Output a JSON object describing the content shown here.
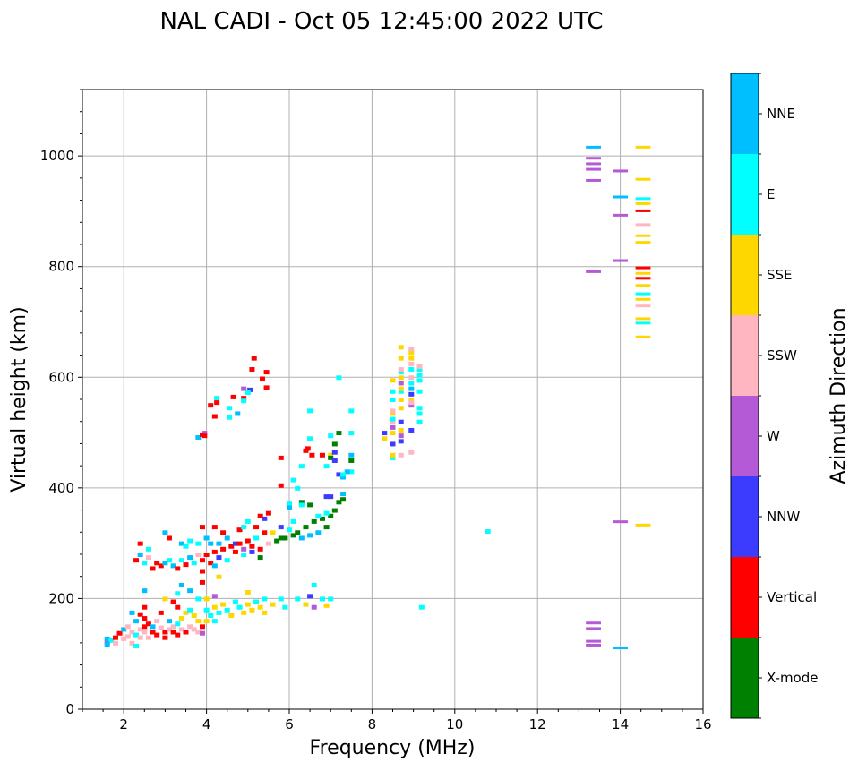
{
  "chart_data": {
    "type": "scatter",
    "title": "NAL CADI - Oct 05 12:45:00 2022 UTC",
    "xlabel": "Frequency (MHz)",
    "ylabel": "Virtual height (km)",
    "xlim": [
      1,
      16
    ],
    "ylim": [
      0,
      1120
    ],
    "grid": true,
    "xticks": [
      2,
      4,
      6,
      8,
      10,
      12,
      14,
      16
    ],
    "yticks": [
      0,
      200,
      400,
      600,
      800,
      1000
    ],
    "colorbar": {
      "label": "Azimuth Direction",
      "categories": [
        "X-mode",
        "Vertical",
        "NNW",
        "W",
        "SSW",
        "SSE",
        "E",
        "NNE"
      ],
      "colors": [
        "#008000",
        "#ff0000",
        "#3c3cff",
        "#b55ad6",
        "#ffb6c1",
        "#ffd700",
        "#00ffff",
        "#00bfff"
      ]
    },
    "points_format": [
      "frequency_mhz",
      "virtual_height_km",
      "direction_index"
    ],
    "points": [
      [
        1.6,
        122,
        3
      ],
      [
        1.6,
        128,
        7
      ],
      [
        1.7,
        125,
        6
      ],
      [
        1.8,
        120,
        4
      ],
      [
        1.8,
        130,
        1
      ],
      [
        1.9,
        138,
        1
      ],
      [
        2.0,
        128,
        4
      ],
      [
        2.0,
        145,
        7
      ],
      [
        2.1,
        132,
        4
      ],
      [
        2.1,
        150,
        4
      ],
      [
        2.2,
        140,
        4
      ],
      [
        2.2,
        120,
        4
      ],
      [
        2.3,
        135,
        6
      ],
      [
        2.3,
        160,
        7
      ],
      [
        2.4,
        145,
        4
      ],
      [
        2.4,
        130,
        4
      ],
      [
        2.4,
        172,
        1
      ],
      [
        2.5,
        150,
        1
      ],
      [
        2.5,
        140,
        4
      ],
      [
        2.5,
        165,
        1
      ],
      [
        2.5,
        185,
        1
      ],
      [
        2.6,
        130,
        4
      ],
      [
        2.6,
        155,
        1
      ],
      [
        2.7,
        150,
        7
      ],
      [
        2.7,
        140,
        1
      ],
      [
        2.8,
        135,
        1
      ],
      [
        2.8,
        160,
        4
      ],
      [
        2.9,
        148,
        4
      ],
      [
        2.9,
        175,
        1
      ],
      [
        3.0,
        140,
        1
      ],
      [
        3.0,
        130,
        1
      ],
      [
        3.1,
        160,
        7
      ],
      [
        3.1,
        145,
        4
      ],
      [
        3.2,
        140,
        1
      ],
      [
        3.2,
        150,
        4
      ],
      [
        3.3,
        135,
        1
      ],
      [
        3.3,
        155,
        6
      ],
      [
        3.4,
        165,
        5
      ],
      [
        3.4,
        145,
        4
      ],
      [
        3.5,
        175,
        5
      ],
      [
        3.5,
        140,
        1
      ],
      [
        3.6,
        150,
        4
      ],
      [
        3.6,
        180,
        6
      ],
      [
        3.7,
        145,
        4
      ],
      [
        3.7,
        170,
        5
      ],
      [
        3.8,
        160,
        5
      ],
      [
        3.8,
        140,
        4
      ],
      [
        3.9,
        150,
        1
      ],
      [
        3.9,
        138,
        3
      ],
      [
        4.0,
        180,
        6
      ],
      [
        4.0,
        160,
        5
      ],
      [
        4.1,
        170,
        6
      ],
      [
        4.2,
        185,
        5
      ],
      [
        4.2,
        160,
        6
      ],
      [
        4.3,
        175,
        6
      ],
      [
        4.4,
        190,
        5
      ],
      [
        4.5,
        180,
        6
      ],
      [
        4.6,
        170,
        5
      ],
      [
        4.7,
        195,
        6
      ],
      [
        4.8,
        185,
        6
      ],
      [
        4.9,
        175,
        5
      ],
      [
        5.0,
        190,
        5
      ],
      [
        5.0,
        212,
        5
      ],
      [
        5.1,
        180,
        5
      ],
      [
        5.2,
        195,
        6
      ],
      [
        5.3,
        185,
        5
      ],
      [
        5.4,
        175,
        5
      ],
      [
        5.4,
        200,
        6
      ],
      [
        5.6,
        190,
        5
      ],
      [
        5.8,
        200,
        6
      ],
      [
        5.9,
        185,
        6
      ],
      [
        6.2,
        200,
        6
      ],
      [
        6.4,
        190,
        5
      ],
      [
        6.5,
        205,
        2
      ],
      [
        6.6,
        225,
        6
      ],
      [
        6.6,
        185,
        3
      ],
      [
        6.8,
        200,
        6
      ],
      [
        6.9,
        188,
        5
      ],
      [
        7.0,
        200,
        6
      ],
      [
        4.0,
        200,
        5
      ],
      [
        3.0,
        200,
        5
      ],
      [
        3.3,
        210,
        6
      ],
      [
        2.5,
        215,
        7
      ],
      [
        3.6,
        215,
        7
      ],
      [
        9.2,
        185,
        6
      ],
      [
        10.8,
        322,
        6
      ],
      [
        4.3,
        240,
        5
      ],
      [
        2.3,
        115,
        6
      ],
      [
        1.6,
        118,
        7
      ],
      [
        2.2,
        175,
        7
      ],
      [
        3.4,
        225,
        7
      ],
      [
        3.8,
        200,
        6
      ],
      [
        3.2,
        195,
        1
      ],
      [
        3.3,
        185,
        1
      ],
      [
        4.2,
        205,
        3
      ],
      [
        2.3,
        270,
        1
      ],
      [
        2.4,
        280,
        7
      ],
      [
        2.4,
        300,
        1
      ],
      [
        2.5,
        265,
        6
      ],
      [
        2.6,
        275,
        4
      ],
      [
        2.7,
        255,
        1
      ],
      [
        2.8,
        265,
        1
      ],
      [
        2.9,
        260,
        1
      ],
      [
        3.0,
        265,
        7
      ],
      [
        3.0,
        320,
        7
      ],
      [
        3.1,
        270,
        6
      ],
      [
        3.1,
        310,
        1
      ],
      [
        3.2,
        260,
        7
      ],
      [
        3.3,
        255,
        1
      ],
      [
        3.4,
        270,
        6
      ],
      [
        3.4,
        300,
        7
      ],
      [
        3.5,
        262,
        1
      ],
      [
        3.6,
        275,
        7
      ],
      [
        3.6,
        305,
        6
      ],
      [
        3.7,
        265,
        6
      ],
      [
        3.8,
        280,
        4
      ],
      [
        3.8,
        300,
        6
      ],
      [
        3.9,
        270,
        1
      ],
      [
        3.9,
        250,
        1
      ],
      [
        4.0,
        280,
        1
      ],
      [
        4.0,
        310,
        7
      ],
      [
        4.1,
        265,
        1
      ],
      [
        4.1,
        300,
        7
      ],
      [
        4.2,
        285,
        1
      ],
      [
        4.2,
        260,
        7
      ],
      [
        4.3,
        300,
        7
      ],
      [
        4.3,
        275,
        2
      ],
      [
        4.4,
        290,
        1
      ],
      [
        4.5,
        270,
        6
      ],
      [
        4.5,
        310,
        7
      ],
      [
        4.6,
        295,
        1
      ],
      [
        4.7,
        285,
        1
      ],
      [
        4.7,
        300,
        2
      ],
      [
        4.8,
        300,
        1
      ],
      [
        4.9,
        280,
        6
      ],
      [
        4.9,
        290,
        3
      ],
      [
        5.0,
        305,
        1
      ],
      [
        5.1,
        295,
        1
      ],
      [
        5.1,
        285,
        2
      ],
      [
        5.2,
        330,
        1
      ],
      [
        5.2,
        310,
        6
      ],
      [
        5.3,
        290,
        1
      ],
      [
        5.3,
        275,
        0
      ],
      [
        5.4,
        320,
        1
      ],
      [
        5.4,
        345,
        2
      ],
      [
        5.5,
        300,
        4
      ],
      [
        5.5,
        355,
        1
      ],
      [
        5.6,
        320,
        5
      ],
      [
        5.7,
        305,
        0
      ],
      [
        5.8,
        330,
        2
      ],
      [
        5.9,
        310,
        0
      ],
      [
        6.0,
        325,
        6
      ],
      [
        6.1,
        315,
        0
      ],
      [
        6.2,
        320,
        0
      ],
      [
        6.3,
        310,
        7
      ],
      [
        6.4,
        330,
        0
      ],
      [
        6.5,
        315,
        7
      ],
      [
        6.6,
        340,
        0
      ],
      [
        6.7,
        320,
        7
      ],
      [
        6.8,
        345,
        0
      ],
      [
        6.9,
        330,
        0
      ],
      [
        7.0,
        350,
        0
      ],
      [
        7.0,
        385,
        2
      ],
      [
        7.1,
        360,
        0
      ],
      [
        7.2,
        375,
        0
      ],
      [
        7.3,
        390,
        7
      ],
      [
        6.3,
        375,
        0
      ],
      [
        6.5,
        370,
        0
      ],
      [
        6.7,
        350,
        6
      ],
      [
        6.9,
        355,
        6
      ],
      [
        5.8,
        310,
        0
      ],
      [
        6.1,
        340,
        6
      ],
      [
        6.3,
        370,
        6
      ],
      [
        5.3,
        350,
        1
      ],
      [
        4.8,
        325,
        1
      ],
      [
        4.4,
        320,
        1
      ],
      [
        4.2,
        330,
        1
      ],
      [
        5.0,
        340,
        6
      ],
      [
        3.9,
        330,
        1
      ],
      [
        3.5,
        295,
        6
      ],
      [
        2.6,
        290,
        6
      ],
      [
        3.9,
        230,
        1
      ],
      [
        4.9,
        330,
        6
      ],
      [
        5.15,
        635,
        1
      ],
      [
        5.1,
        615,
        1
      ],
      [
        5.45,
        610,
        1
      ],
      [
        5.35,
        598,
        1
      ],
      [
        5.45,
        582,
        1
      ],
      [
        4.9,
        580,
        3
      ],
      [
        5.05,
        578,
        2
      ],
      [
        5.0,
        573,
        6
      ],
      [
        4.25,
        563,
        6
      ],
      [
        4.25,
        555,
        1
      ],
      [
        4.65,
        565,
        1
      ],
      [
        4.9,
        563,
        1
      ],
      [
        4.9,
        558,
        6
      ],
      [
        4.1,
        550,
        1
      ],
      [
        4.55,
        545,
        6
      ],
      [
        4.75,
        535,
        7
      ],
      [
        4.55,
        528,
        6
      ],
      [
        4.2,
        530,
        1
      ],
      [
        3.8,
        492,
        7
      ],
      [
        3.9,
        497,
        1
      ],
      [
        3.95,
        500,
        3
      ],
      [
        3.95,
        495,
        1
      ],
      [
        5.8,
        455,
        1
      ],
      [
        5.8,
        405,
        1
      ],
      [
        6.0,
        372,
        6
      ],
      [
        6.0,
        365,
        7
      ],
      [
        6.1,
        415,
        6
      ],
      [
        6.2,
        400,
        6
      ],
      [
        6.3,
        440,
        6
      ],
      [
        6.4,
        468,
        1
      ],
      [
        6.45,
        472,
        1
      ],
      [
        6.5,
        540,
        6
      ],
      [
        6.5,
        490,
        6
      ],
      [
        6.55,
        460,
        1
      ],
      [
        6.8,
        460,
        1
      ],
      [
        7.0,
        460,
        5
      ],
      [
        7.0,
        455,
        0
      ],
      [
        7.1,
        480,
        0
      ],
      [
        7.1,
        465,
        2
      ],
      [
        7.1,
        450,
        2
      ],
      [
        6.9,
        440,
        6
      ],
      [
        7.2,
        425,
        2
      ],
      [
        7.3,
        420,
        7
      ],
      [
        7.2,
        500,
        0
      ],
      [
        7.2,
        600,
        6
      ],
      [
        7.5,
        460,
        7
      ],
      [
        7.5,
        450,
        0
      ],
      [
        7.5,
        430,
        6
      ],
      [
        7.5,
        540,
        6
      ],
      [
        7.5,
        500,
        6
      ],
      [
        7.4,
        430,
        7
      ],
      [
        7.3,
        380,
        0
      ],
      [
        7.3,
        425,
        6
      ],
      [
        6.9,
        385,
        2
      ],
      [
        7.0,
        495,
        6
      ],
      [
        8.3,
        500,
        2
      ],
      [
        8.3,
        490,
        5
      ],
      [
        8.5,
        455,
        6
      ],
      [
        8.5,
        460,
        5
      ],
      [
        8.5,
        480,
        2
      ],
      [
        8.5,
        500,
        5
      ],
      [
        8.5,
        510,
        3
      ],
      [
        8.5,
        520,
        4
      ],
      [
        8.5,
        525,
        6
      ],
      [
        8.5,
        535,
        5
      ],
      [
        8.5,
        560,
        6
      ],
      [
        8.5,
        575,
        6
      ],
      [
        8.5,
        595,
        5
      ],
      [
        8.5,
        540,
        4
      ],
      [
        8.7,
        460,
        4
      ],
      [
        8.7,
        485,
        2
      ],
      [
        8.7,
        495,
        3
      ],
      [
        8.7,
        505,
        5
      ],
      [
        8.7,
        520,
        2
      ],
      [
        8.7,
        545,
        5
      ],
      [
        8.7,
        560,
        5
      ],
      [
        8.7,
        575,
        6
      ],
      [
        8.7,
        590,
        3
      ],
      [
        8.7,
        610,
        6
      ],
      [
        8.7,
        615,
        4
      ],
      [
        8.7,
        635,
        5
      ],
      [
        8.7,
        655,
        5
      ],
      [
        8.7,
        600,
        5
      ],
      [
        8.7,
        580,
        5
      ],
      [
        8.95,
        465,
        4
      ],
      [
        8.95,
        505,
        2
      ],
      [
        8.95,
        550,
        3
      ],
      [
        8.95,
        560,
        5
      ],
      [
        8.95,
        570,
        2
      ],
      [
        8.95,
        580,
        7
      ],
      [
        8.95,
        590,
        6
      ],
      [
        8.95,
        600,
        4
      ],
      [
        8.95,
        615,
        6
      ],
      [
        8.95,
        625,
        4
      ],
      [
        8.95,
        635,
        5
      ],
      [
        8.95,
        645,
        5
      ],
      [
        8.95,
        652,
        4
      ],
      [
        8.95,
        555,
        4
      ],
      [
        9.15,
        520,
        6
      ],
      [
        9.15,
        535,
        6
      ],
      [
        9.15,
        545,
        6
      ],
      [
        9.15,
        575,
        6
      ],
      [
        9.15,
        595,
        6
      ],
      [
        9.15,
        605,
        6
      ],
      [
        9.15,
        615,
        6
      ],
      [
        9.15,
        620,
        4
      ],
      [
        13.35,
        1015,
        7
      ],
      [
        13.35,
        995,
        3
      ],
      [
        13.35,
        985,
        3
      ],
      [
        13.35,
        975,
        3
      ],
      [
        13.35,
        955,
        3
      ],
      [
        13.35,
        790,
        3
      ],
      [
        13.35,
        155,
        3
      ],
      [
        13.35,
        145,
        3
      ],
      [
        13.35,
        122,
        3
      ],
      [
        13.35,
        115,
        3
      ],
      [
        14.0,
        972,
        3
      ],
      [
        14.0,
        925,
        7
      ],
      [
        14.0,
        892,
        3
      ],
      [
        14.0,
        810,
        3
      ],
      [
        14.0,
        338,
        3
      ],
      [
        14.0,
        110,
        7
      ],
      [
        14.55,
        1015,
        5
      ],
      [
        14.55,
        957,
        5
      ],
      [
        14.55,
        913,
        5
      ],
      [
        14.55,
        922,
        6
      ],
      [
        14.55,
        900,
        1
      ],
      [
        14.55,
        875,
        4
      ],
      [
        14.55,
        855,
        5
      ],
      [
        14.55,
        843,
        5
      ],
      [
        14.55,
        797,
        1
      ],
      [
        14.55,
        787,
        5
      ],
      [
        14.55,
        778,
        1
      ],
      [
        14.55,
        765,
        5
      ],
      [
        14.55,
        750,
        6
      ],
      [
        14.55,
        740,
        5
      ],
      [
        14.55,
        728,
        4
      ],
      [
        14.55,
        705,
        5
      ],
      [
        14.55,
        697,
        6
      ],
      [
        14.55,
        672,
        5
      ],
      [
        14.55,
        332,
        5
      ]
    ]
  }
}
